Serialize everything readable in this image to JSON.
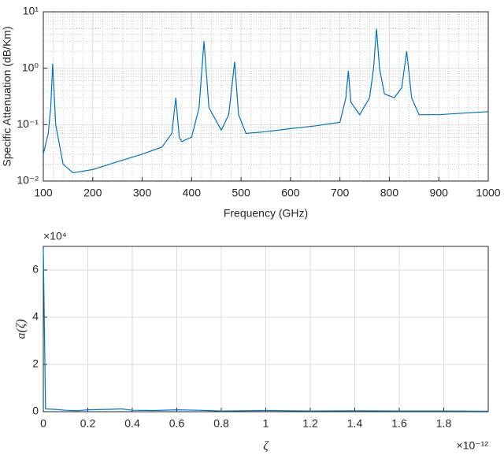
{
  "chart_data": [
    {
      "type": "line",
      "ylabel": "Specific Attenuation (dB/Km)",
      "xlabel": "Frequency (GHz)",
      "log_y": true,
      "grid": true,
      "minor_grid": true,
      "xlim": [
        100,
        1000
      ],
      "xticks": [
        100,
        200,
        300,
        400,
        500,
        600,
        700,
        800,
        900,
        1000
      ],
      "ylim": [
        0.01,
        10
      ],
      "yticks": [
        {
          "value": 0.01,
          "label": "10⁻²"
        },
        {
          "value": 0.1,
          "label": "10⁻¹"
        },
        {
          "value": 1,
          "label": "10⁰"
        },
        {
          "value": 10,
          "label": "10¹"
        }
      ],
      "x": [
        100,
        110,
        115,
        119,
        125,
        140,
        160,
        200,
        250,
        300,
        340,
        360,
        368,
        375,
        380,
        400,
        415,
        425,
        435,
        460,
        475,
        487,
        495,
        510,
        550,
        600,
        650,
        700,
        712,
        717,
        722,
        740,
        760,
        768,
        774,
        780,
        790,
        810,
        825,
        835,
        845,
        860,
        900,
        950,
        1000
      ],
      "series": [
        {
          "color": "#0072bd",
          "values": [
            0.03,
            0.07,
            0.2,
            1.2,
            0.1,
            0.02,
            0.014,
            0.016,
            0.022,
            0.03,
            0.04,
            0.07,
            0.3,
            0.06,
            0.05,
            0.06,
            0.2,
            3,
            0.2,
            0.08,
            0.15,
            1.3,
            0.15,
            0.07,
            0.075,
            0.085,
            0.095,
            0.11,
            0.3,
            0.9,
            0.25,
            0.15,
            0.3,
            1,
            5,
            1,
            0.35,
            0.3,
            0.45,
            2,
            0.3,
            0.15,
            0.15,
            0.16,
            0.17
          ]
        }
      ]
    },
    {
      "type": "line",
      "ylabel": "a(ζ)",
      "xlabel": "ζ",
      "grid": true,
      "y_multiplier": "×10⁴",
      "x_multiplier": "×10⁻¹²",
      "xlim": [
        0,
        2
      ],
      "xticks": [
        0,
        0.2,
        0.4,
        0.6,
        0.8,
        1,
        1.2,
        1.4,
        1.6,
        1.8
      ],
      "ylim": [
        0,
        7
      ],
      "yticks": [
        0,
        2,
        4,
        6
      ],
      "x": [
        0,
        0.01,
        0.05,
        0.1,
        0.15,
        0.2,
        0.3,
        0.35,
        0.4,
        0.5,
        0.6,
        0.7,
        0.8,
        1,
        1.2,
        1.4,
        1.6,
        1.8,
        2
      ],
      "series": [
        {
          "color": "#0072bd",
          "values": [
            6.9,
            0.12,
            0.1,
            0.06,
            0.04,
            0.08,
            0.1,
            0.12,
            0.06,
            0.05,
            0.08,
            0.06,
            0.03,
            0.05,
            0.03,
            0.04,
            0.03,
            0.03,
            0.02
          ]
        }
      ]
    }
  ]
}
